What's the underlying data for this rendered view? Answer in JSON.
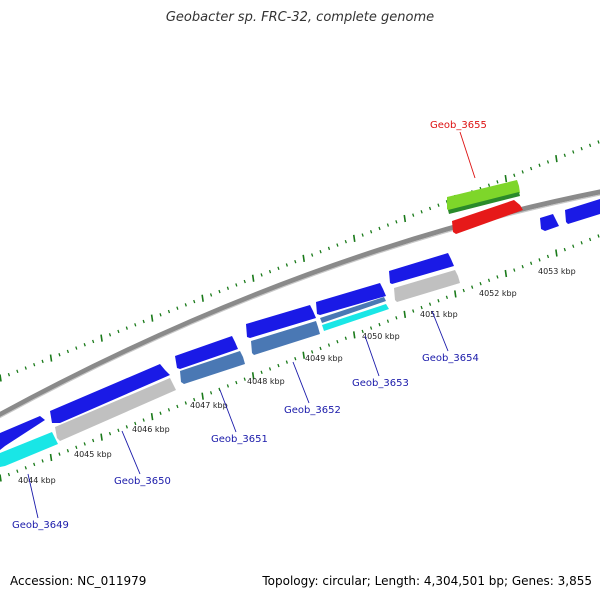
{
  "title": "Geobacter sp. FRC-32, complete genome",
  "footer": {
    "accession": "Accession: NC_011979",
    "summary": "Topology: circular; Length: 4,304,501 bp; Genes: 3,855"
  },
  "colors": {
    "forward": "#1a1ae6",
    "reverse_grey": "#c0c0c0",
    "reverse_cyan": "#19e6e6",
    "reverse_steel": "#4a78b4",
    "highlight_red": "#e61919",
    "highlight_green": "#7ed62a",
    "backbone": "#8a8a8a",
    "ticks": "#1a7a1a",
    "label_blue": "#1a1aaa",
    "label_red": "#dd1111"
  },
  "tick_labels": [
    "4044 kbp",
    "4045 kbp",
    "4046 kbp",
    "4047 kbp",
    "4048 kbp",
    "4049 kbp",
    "4050 kbp",
    "4051 kbp",
    "4052 kbp",
    "4053 kbp"
  ],
  "gene_labels": [
    {
      "text": "Geob_3649",
      "color": "blue"
    },
    {
      "text": "Geob_3650",
      "color": "blue"
    },
    {
      "text": "Geob_3651",
      "color": "blue"
    },
    {
      "text": "Geob_3652",
      "color": "blue"
    },
    {
      "text": "Geob_3653",
      "color": "blue"
    },
    {
      "text": "Geob_3654",
      "color": "blue"
    },
    {
      "text": "Geob_3655",
      "color": "red"
    }
  ]
}
